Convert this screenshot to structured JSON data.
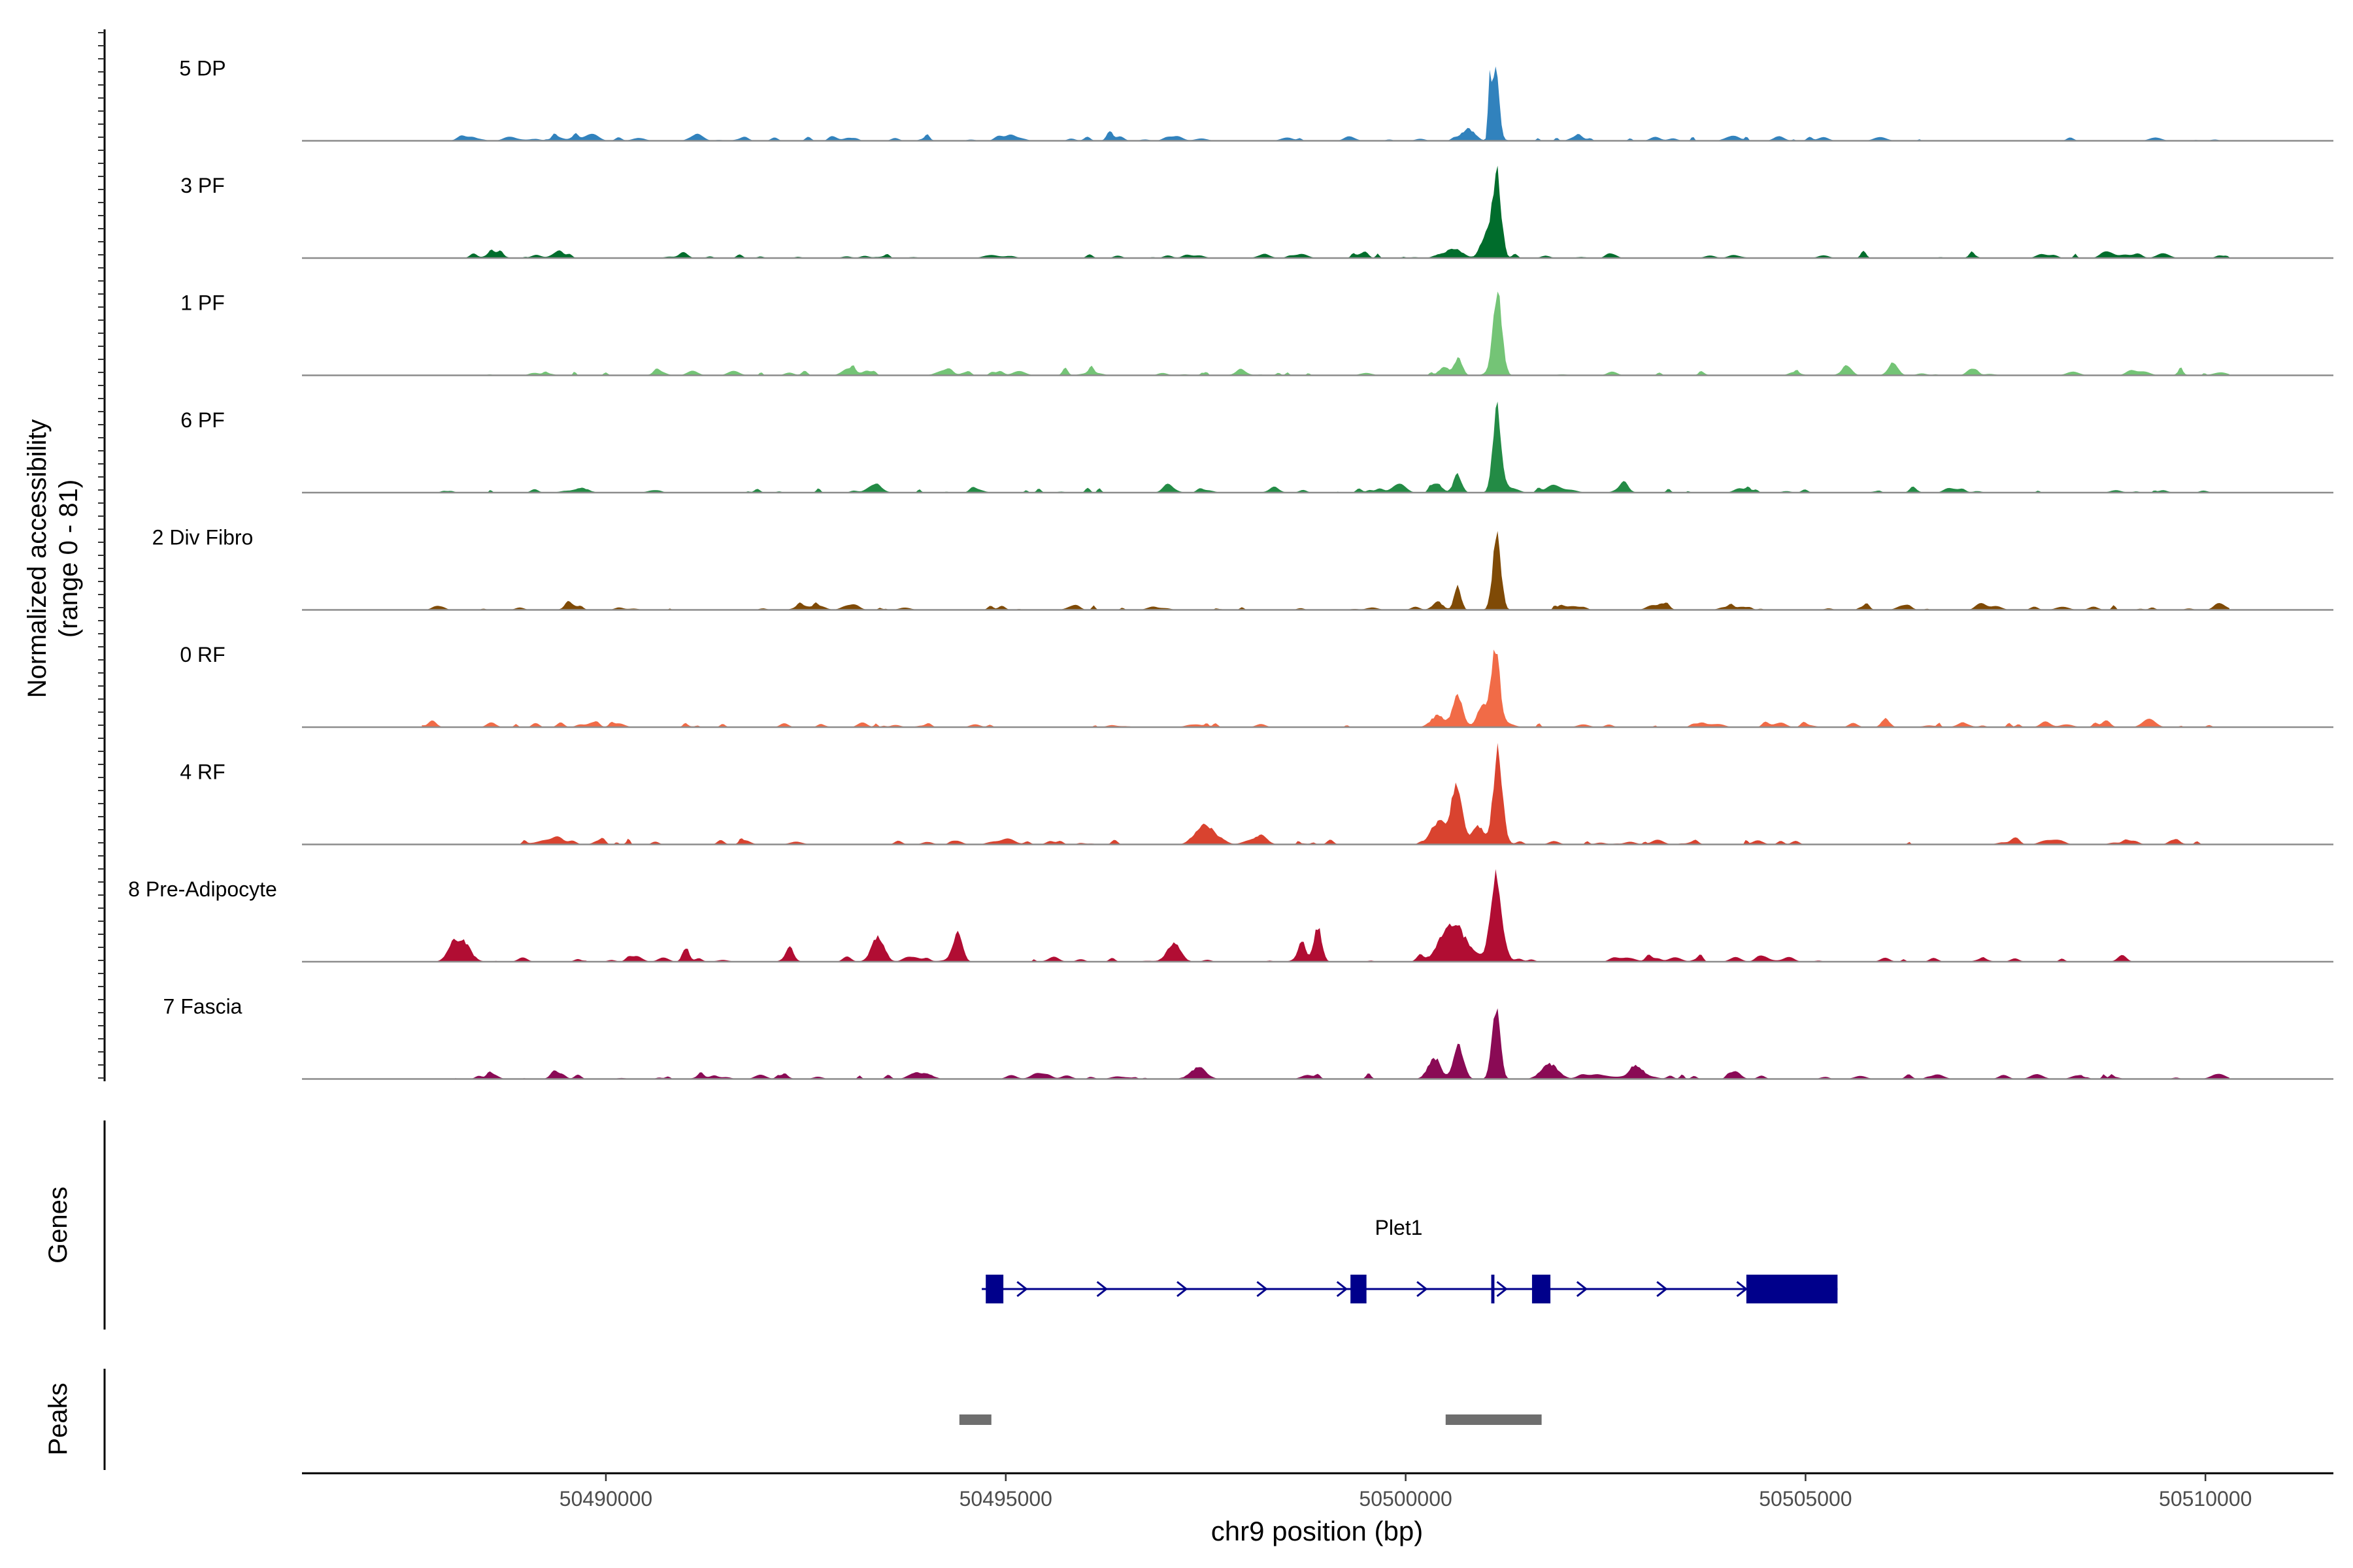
{
  "chart_data": {
    "type": "area",
    "title": "",
    "region": "chr9",
    "xlabel": "chr9 position (bp)",
    "ylabel_line1": "Normalized accessibility",
    "ylabel_line2": "(range 0 - 81)",
    "xlim": [
      50486200,
      50511600
    ],
    "ylim": [
      0,
      81
    ],
    "x_ticks": [
      50490000,
      50495000,
      50500000,
      50505000,
      50510000
    ],
    "x_tick_labels": [
      "50490000",
      "50495000",
      "50500000",
      "50505000",
      "50510000"
    ],
    "track_range": [
      50487700,
      50510300
    ],
    "tracks": [
      {
        "name": "5 DP",
        "color": "#3182bd",
        "seed": 11,
        "peaks": [
          [
            50501130,
            65,
            55
          ],
          [
            50501050,
            55,
            26
          ],
          [
            50500780,
            10,
            120
          ],
          [
            50496300,
            8,
            55
          ],
          [
            50488200,
            4,
            60
          ]
        ]
      },
      {
        "name": "3 PF",
        "color": "#006d2c",
        "seed": 23,
        "peaks": [
          [
            50501140,
            73,
            75
          ],
          [
            50501000,
            20,
            90
          ],
          [
            50500600,
            8,
            150
          ]
        ]
      },
      {
        "name": "1 PF",
        "color": "#74c476",
        "seed": 37,
        "peaks": [
          [
            50501150,
            70,
            78
          ],
          [
            50500660,
            15,
            70
          ],
          [
            50500480,
            7,
            90
          ],
          [
            50506100,
            8,
            80
          ]
        ]
      },
      {
        "name": "6 PF",
        "color": "#238b45",
        "seed": 41,
        "peaks": [
          [
            50501140,
            73,
            72
          ],
          [
            50500650,
            14,
            70
          ],
          [
            50500400,
            6,
            90
          ],
          [
            50489700,
            4,
            120
          ]
        ]
      },
      {
        "name": "2 Div Fibro",
        "color": "#7f4a06",
        "seed": 53,
        "peaks": [
          [
            50501140,
            64,
            72
          ],
          [
            50500650,
            20,
            60
          ],
          [
            50500400,
            7,
            90
          ]
        ]
      },
      {
        "name": "0 RF",
        "color": "#f16b47",
        "seed": 67,
        "peaks": [
          [
            50501120,
            68,
            78
          ],
          [
            50500650,
            27,
            90
          ],
          [
            50500950,
            18,
            70
          ],
          [
            50500400,
            10,
            120
          ],
          [
            50506000,
            8,
            70
          ]
        ]
      },
      {
        "name": "4 RF",
        "color": "#d9432f",
        "seed": 71,
        "peaks": [
          [
            50501150,
            78,
            78
          ],
          [
            50500640,
            54,
            95
          ],
          [
            50500400,
            18,
            130
          ],
          [
            50500900,
            12,
            100
          ],
          [
            50497500,
            16,
            150
          ],
          [
            50498200,
            8,
            100
          ]
        ]
      },
      {
        "name": "8 Pre-Adipocyte",
        "color": "#b10d33",
        "seed": 83,
        "peaks": [
          [
            50501130,
            76,
            95
          ],
          [
            50500600,
            32,
            210
          ],
          [
            50498900,
            30,
            70
          ],
          [
            50494400,
            22,
            80
          ],
          [
            50493400,
            22,
            110
          ],
          [
            50488200,
            18,
            140
          ],
          [
            50491000,
            12,
            60
          ],
          [
            50492300,
            12,
            60
          ],
          [
            50497100,
            16,
            120
          ],
          [
            50498700,
            12,
            60
          ]
        ]
      },
      {
        "name": "7 Fascia",
        "color": "#8a0a55",
        "seed": 97,
        "peaks": [
          [
            50501130,
            62,
            72
          ],
          [
            50500660,
            30,
            90
          ],
          [
            50500350,
            16,
            110
          ],
          [
            50501800,
            13,
            150
          ],
          [
            50502900,
            10,
            120
          ],
          [
            50497400,
            7,
            150
          ],
          [
            50494000,
            5,
            120
          ]
        ]
      }
    ],
    "genes_label": "Genes",
    "gene": {
      "name": "Plet1",
      "start": 50494700,
      "end": 50505400,
      "strand": "+",
      "exons": [
        [
          50494750,
          50494970
        ],
        [
          50499310,
          50499510
        ],
        [
          50501580,
          50501810
        ],
        [
          50504260,
          50505400
        ]
      ],
      "thin_exons": [
        [
          50501070,
          50501110
        ]
      ]
    },
    "peaks_label": "Peaks",
    "peak_regions": [
      [
        50494420,
        50494820
      ],
      [
        50500500,
        50501700
      ]
    ]
  }
}
